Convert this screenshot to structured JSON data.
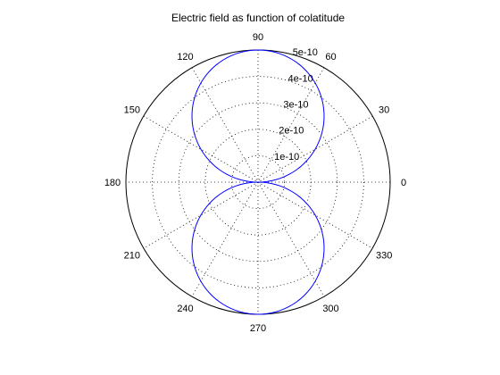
{
  "chart_data": {
    "type": "polar",
    "title": "Electric field as function of colatitude",
    "angle_unit": "degrees",
    "angular_ticks": [
      0,
      30,
      60,
      90,
      120,
      150,
      180,
      210,
      240,
      270,
      300,
      330
    ],
    "angular_tick_labels": [
      "0",
      "30",
      "60",
      "90",
      "120",
      "150",
      "180",
      "210",
      "240",
      "270",
      "300",
      "330"
    ],
    "radial_ticks": [
      1e-10,
      2e-10,
      3e-10,
      4e-10,
      5e-10
    ],
    "radial_tick_labels": [
      "1e-10",
      "2e-10",
      "3e-10",
      "4e-10",
      "5e-10"
    ],
    "rlim": [
      0,
      5e-10
    ],
    "grid": true,
    "series": [
      {
        "color": "#0000ff",
        "function": "r = 5e-10 * |sin(theta)|",
        "theta_deg": [
          0,
          15,
          30,
          45,
          60,
          75,
          90,
          105,
          120,
          135,
          150,
          165,
          180,
          195,
          210,
          225,
          240,
          255,
          270,
          285,
          300,
          315,
          330,
          345,
          360
        ],
        "r": [
          0,
          1.29e-10,
          2.5e-10,
          3.54e-10,
          4.33e-10,
          4.83e-10,
          5e-10,
          4.83e-10,
          4.33e-10,
          3.54e-10,
          2.5e-10,
          1.29e-10,
          0,
          1.29e-10,
          2.5e-10,
          3.54e-10,
          4.33e-10,
          4.83e-10,
          5e-10,
          4.83e-10,
          4.33e-10,
          3.54e-10,
          2.5e-10,
          1.29e-10,
          0
        ]
      }
    ]
  }
}
